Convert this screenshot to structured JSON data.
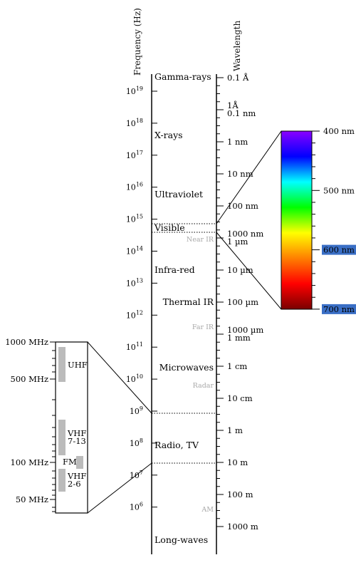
{
  "axes": {
    "frequency_label": "Frequency (Hz)",
    "wavelength_label": "Wavelength"
  },
  "frequency_ticks": [
    {
      "base": "10",
      "exp": "19"
    },
    {
      "base": "10",
      "exp": "18"
    },
    {
      "base": "10",
      "exp": "17"
    },
    {
      "base": "10",
      "exp": "16"
    },
    {
      "base": "10",
      "exp": "15"
    },
    {
      "base": "10",
      "exp": "14"
    },
    {
      "base": "10",
      "exp": "13"
    },
    {
      "base": "10",
      "exp": "12"
    },
    {
      "base": "10",
      "exp": "11"
    },
    {
      "base": "10",
      "exp": "10"
    },
    {
      "base": "10",
      "exp": "9"
    },
    {
      "base": "10",
      "exp": "8"
    },
    {
      "base": "10",
      "exp": "7"
    },
    {
      "base": "10",
      "exp": "6"
    }
  ],
  "bands": [
    {
      "label": "Gamma-rays",
      "align": "left"
    },
    {
      "label": "X-rays",
      "align": "left"
    },
    {
      "label": "Ultraviolet",
      "align": "left"
    },
    {
      "label": "Visible",
      "align": "left"
    },
    {
      "label": "Infra-red",
      "align": "left"
    },
    {
      "label": "Thermal IR",
      "align": "right"
    },
    {
      "label": "Microwaves",
      "align": "right"
    },
    {
      "label": "Radio, TV",
      "align": "left"
    },
    {
      "label": "Long-waves",
      "align": "left"
    }
  ],
  "sub_bands": [
    "Near IR",
    "Far IR",
    "Radar",
    "AM"
  ],
  "wavelength_ticks": [
    {
      "lines": [
        "0.1 Å"
      ]
    },
    {
      "lines": [
        "1Å",
        "0.1 nm"
      ]
    },
    {
      "lines": [
        "1 nm"
      ]
    },
    {
      "lines": [
        "10 nm"
      ]
    },
    {
      "lines": [
        "100 nm"
      ]
    },
    {
      "lines": [
        "1000 nm",
        "1 µm"
      ]
    },
    {
      "lines": [
        "10 µm"
      ]
    },
    {
      "lines": [
        "100 µm"
      ]
    },
    {
      "lines": [
        "1000 µm",
        "1 mm"
      ]
    },
    {
      "lines": [
        "1 cm"
      ]
    },
    {
      "lines": [
        "10 cm"
      ]
    },
    {
      "lines": [
        "1 m"
      ]
    },
    {
      "lines": [
        "10 m"
      ]
    },
    {
      "lines": [
        "100 m"
      ]
    },
    {
      "lines": [
        "1000 m"
      ]
    }
  ],
  "visible_spectrum": {
    "ticks": [
      {
        "label": "400 nm",
        "highlight": false
      },
      {
        "label": "500 nm",
        "highlight": false
      },
      {
        "label": "600 nm",
        "highlight": true
      },
      {
        "label": "700 nm",
        "highlight": true
      }
    ],
    "colors": [
      "#8b00ff",
      "#0000ff",
      "#00ffff",
      "#00ff00",
      "#ffff00",
      "#ff7f00",
      "#ff0000",
      "#7a0000"
    ],
    "highlight_color": "#3a6fc6"
  },
  "radio_inset": {
    "scale_labels": [
      "1000 MHz",
      "500 MHz",
      "100 MHz",
      "50 MHz"
    ],
    "bands": [
      {
        "label_lines": [
          "UHF"
        ]
      },
      {
        "label_lines": [
          "VHF",
          "7-13"
        ]
      },
      {
        "label_lines": [
          "FM"
        ]
      },
      {
        "label_lines": [
          "VHF",
          "2-6"
        ]
      }
    ],
    "bar_color": "#bbbbbb"
  }
}
